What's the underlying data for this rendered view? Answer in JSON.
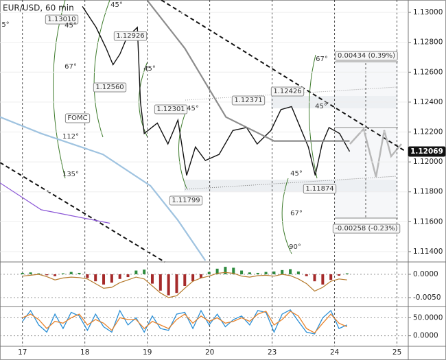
{
  "chart_data": [
    {
      "type": "line",
      "title": "EUR/USD, 60 min",
      "xlim": [
        -0.36,
        6.18
      ],
      "ylim": [
        1.11331,
        1.13083
      ],
      "xticks": [
        {
          "value": 0,
          "label": "17"
        },
        {
          "value": 1,
          "label": "18"
        },
        {
          "value": 2,
          "label": "19"
        },
        {
          "value": 3,
          "label": "20"
        },
        {
          "value": 4,
          "label": "23"
        },
        {
          "value": 5,
          "label": "24"
        },
        {
          "value": 6,
          "label": "25"
        }
      ],
      "yticks": [
        {
          "value": 1.114,
          "label": "1.11400"
        },
        {
          "value": 1.116,
          "label": "1.11600"
        },
        {
          "value": 1.118,
          "label": "1.11800"
        },
        {
          "value": 1.12,
          "label": "1.12000"
        },
        {
          "value": 1.122,
          "label": "1.12200"
        },
        {
          "value": 1.124,
          "label": "1.12400"
        },
        {
          "value": 1.126,
          "label": "1.12600"
        },
        {
          "value": 1.128,
          "label": "1.12800"
        },
        {
          "value": 1.13,
          "label": "1.13000"
        }
      ],
      "grid": true,
      "series": [
        {
          "color": "#111111",
          "width": 1.4,
          "x": [
            0.96,
            1.18,
            1.34,
            1.45,
            1.56,
            1.67,
            1.84,
            1.89,
            1.95,
            2.16,
            2.33,
            2.49,
            2.63,
            2.77,
            2.93,
            3.15,
            3.37,
            3.59,
            3.76,
            3.98,
            4.14,
            4.31,
            4.47,
            4.58,
            4.69,
            4.8,
            4.91,
            5.08,
            5.24
          ],
          "values": [
            1.1304,
            1.129,
            1.1276,
            1.1265,
            1.1272,
            1.1283,
            1.129,
            1.124,
            1.1219,
            1.1226,
            1.1212,
            1.1228,
            1.1191,
            1.121,
            1.1201,
            1.1205,
            1.1221,
            1.1223,
            1.1212,
            1.1221,
            1.1235,
            1.1237,
            1.1221,
            1.121,
            1.1191,
            1.1212,
            1.1223,
            1.1219,
            1.1207
          ]
        },
        {
          "color": "#8c8c8c",
          "width": 2.2,
          "x": [
            2.0,
            2.6,
            3.26,
            4.03,
            4.47,
            5.24
          ],
          "values": [
            1.1308,
            1.1276,
            1.123,
            1.1214,
            1.1214,
            1.1214
          ]
        },
        {
          "color": "#9fc3e0",
          "width": 2.2,
          "x": [
            -0.36,
            0.3,
            1.29,
            2.05,
            2.49,
            2.93
          ],
          "values": [
            1.123,
            1.1219,
            1.1205,
            1.1184,
            1.1161,
            1.1134
          ]
        },
        {
          "color": "#8a55d6",
          "width": 1.2,
          "x": [
            -0.36,
            0.3,
            1.4
          ],
          "values": [
            1.1186,
            1.1168,
            1.1159
          ]
        }
      ],
      "annotations": [
        "1.13010",
        "1.12926",
        "1.12560",
        "1.12301",
        "1.12371",
        "1.12426",
        "1.11799",
        "1.11874",
        "FOMC",
        "45°",
        "45°",
        "67°",
        "45°",
        "45°",
        "112°",
        "135°",
        "67°",
        "45°",
        "45°",
        "67°",
        "90°",
        "0.00434 (0.39%)",
        "-0.00258 (-0.23%)",
        "1.12069",
        "5°"
      ]
    },
    {
      "type": "bar",
      "ylim": [
        -0.00676,
        0.00235
      ],
      "yticks": [
        {
          "value": 0,
          "label": "0.0000"
        },
        {
          "value": -0.005,
          "label": "-0.0050"
        }
      ],
      "x": [
        0,
        0.13,
        0.26,
        0.39,
        0.52,
        0.65,
        0.78,
        0.91,
        1.04,
        1.17,
        1.3,
        1.43,
        1.56,
        1.69,
        1.82,
        1.95,
        2.08,
        2.21,
        2.34,
        2.47,
        2.6,
        2.73,
        2.86,
        2.99,
        3.12,
        3.25,
        3.38,
        3.51,
        3.64,
        3.77,
        3.9,
        4.03,
        4.16,
        4.29,
        4.42,
        4.55,
        4.68,
        4.81,
        4.94,
        5.07,
        5.2
      ],
      "values": [
        0.0003,
        0.0004,
        0.0002,
        -0.0002,
        -0.0004,
        0.0002,
        0.0005,
        0.0003,
        -0.0008,
        -0.0015,
        -0.0022,
        -0.0018,
        -0.001,
        -0.0006,
        0.0008,
        0.001,
        -0.002,
        -0.0035,
        -0.0045,
        -0.004,
        -0.0025,
        -0.0015,
        -0.0008,
        0.0005,
        0.0012,
        0.0016,
        0.0014,
        0.0008,
        0.0004,
        0.0003,
        0.0005,
        0.0006,
        0.0009,
        0.0011,
        0.0006,
        -0.0004,
        -0.0015,
        -0.0022,
        -0.0012,
        -0.0003,
        0.0002
      ],
      "color": "#2e8b3e",
      "negative_color": "#a52a2a",
      "signal": {
        "color": "#b5792a",
        "values": [
          -0.0004,
          -0.0002,
          0,
          -0.0005,
          -0.0012,
          -0.0008,
          -0.0006,
          -0.0007,
          -0.001,
          -0.002,
          -0.003,
          -0.0028,
          -0.0018,
          -0.0012,
          -0.0006,
          -0.001,
          -0.0025,
          -0.004,
          -0.005,
          -0.0046,
          -0.003,
          -0.0015,
          -0.0008,
          -0.0004,
          0.0002,
          0.0004,
          0.0002,
          -0.0004,
          -0.0006,
          -0.0003,
          -0.0002,
          -0.0004,
          0,
          -0.0003,
          -0.001,
          -0.002,
          -0.0036,
          -0.0028,
          -0.0015,
          -0.001,
          -0.0012
        ]
      }
    },
    {
      "type": "line",
      "ylim": [
        -27.4,
        77.4
      ],
      "yticks": [
        {
          "value": 50,
          "label": "50.0000"
        },
        {
          "value": 0,
          "label": "0.0000"
        }
      ],
      "x": [
        0,
        0.13,
        0.26,
        0.39,
        0.52,
        0.65,
        0.78,
        0.91,
        1.04,
        1.17,
        1.3,
        1.43,
        1.56,
        1.69,
        1.82,
        1.95,
        2.08,
        2.21,
        2.34,
        2.47,
        2.6,
        2.73,
        2.86,
        2.99,
        3.12,
        3.25,
        3.38,
        3.51,
        3.64,
        3.77,
        3.9,
        4.03,
        4.16,
        4.29,
        4.42,
        4.55,
        4.68,
        4.81,
        4.94,
        5.07,
        5.2
      ],
      "series": [
        {
          "color": "#2a8fd6",
          "values": [
            40,
            70,
            30,
            10,
            60,
            20,
            65,
            55,
            15,
            60,
            25,
            10,
            70,
            30,
            50,
            10,
            55,
            20,
            15,
            60,
            65,
            20,
            70,
            30,
            60,
            25,
            45,
            55,
            30,
            70,
            65,
            10,
            60,
            72,
            40,
            10,
            5,
            50,
            70,
            20,
            30
          ]
        },
        {
          "color": "#e8822a",
          "values": [
            50,
            60,
            45,
            20,
            40,
            35,
            50,
            60,
            30,
            45,
            35,
            15,
            50,
            45,
            45,
            20,
            40,
            30,
            20,
            45,
            60,
            35,
            55,
            40,
            50,
            35,
            40,
            50,
            40,
            60,
            68,
            30,
            45,
            68,
            55,
            20,
            8,
            35,
            60,
            35,
            25
          ]
        }
      ]
    }
  ]
}
